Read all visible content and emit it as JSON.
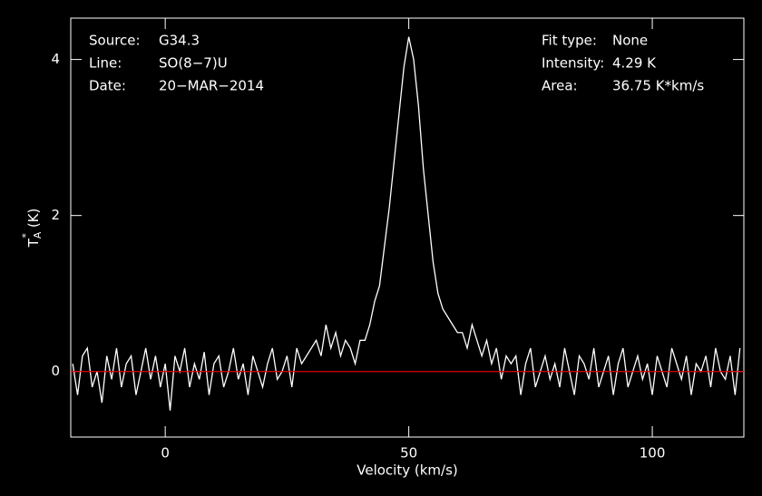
{
  "chart_data": {
    "type": "line",
    "xlabel": "Velocity (km/s)",
    "ylabel": {
      "main": "T",
      "sup": "*",
      "sub": "A",
      "unit": "(K)"
    },
    "annotations": {
      "left": [
        {
          "label": "Source:",
          "value": "G34.3"
        },
        {
          "label": "Line:",
          "value": "SO(8−7)U"
        },
        {
          "label": "Date:",
          "value": "20−MAR−2014"
        }
      ],
      "right": [
        {
          "label": "Fit type:",
          "value": "None"
        },
        {
          "label": "Intensity:",
          "value": "4.29 K"
        },
        {
          "label": "Area:",
          "value": "36.75 K*km/s"
        }
      ]
    },
    "xlim": [
      -19.4,
      118.8
    ],
    "ylim": [
      -0.84,
      4.53
    ],
    "xticks": [
      0,
      50,
      100
    ],
    "yticks": [
      0,
      2,
      4
    ],
    "baseline": {
      "value": 0,
      "color": "#e00000"
    },
    "x": [
      -19,
      -18,
      -17,
      -16,
      -15,
      -14,
      -13,
      -12,
      -11,
      -10,
      -9,
      -8,
      -7,
      -6,
      -5,
      -4,
      -3,
      -2,
      -1,
      0,
      1,
      2,
      3,
      4,
      5,
      6,
      7,
      8,
      9,
      10,
      11,
      12,
      13,
      14,
      15,
      16,
      17,
      18,
      19,
      20,
      21,
      22,
      23,
      24,
      25,
      26,
      27,
      28,
      29,
      30,
      31,
      32,
      33,
      34,
      35,
      36,
      37,
      38,
      39,
      40,
      41,
      42,
      43,
      44,
      45,
      46,
      47,
      48,
      49,
      50,
      51,
      52,
      53,
      54,
      55,
      56,
      57,
      58,
      59,
      60,
      61,
      62,
      63,
      64,
      65,
      66,
      67,
      68,
      69,
      70,
      71,
      72,
      73,
      74,
      75,
      76,
      77,
      78,
      79,
      80,
      81,
      82,
      83,
      84,
      85,
      86,
      87,
      88,
      89,
      90,
      91,
      92,
      93,
      94,
      95,
      96,
      97,
      98,
      99,
      100,
      101,
      102,
      103,
      104,
      105,
      106,
      107,
      108,
      109,
      110,
      111,
      112,
      113,
      114,
      115,
      116,
      117,
      118
    ],
    "series": [
      {
        "color": "#ffffff",
        "values": [
          0.1,
          -0.3,
          0.2,
          0.3,
          -0.2,
          0.0,
          -0.4,
          0.2,
          -0.1,
          0.3,
          -0.2,
          0.1,
          0.2,
          -0.3,
          0.0,
          0.3,
          -0.1,
          0.2,
          -0.2,
          0.1,
          -0.5,
          0.2,
          0.0,
          0.3,
          -0.2,
          0.1,
          -0.1,
          0.25,
          -0.3,
          0.1,
          0.2,
          -0.2,
          0.0,
          0.3,
          -0.1,
          0.1,
          -0.3,
          0.2,
          0.0,
          -0.2,
          0.1,
          0.3,
          -0.1,
          0.0,
          0.2,
          -0.2,
          0.3,
          0.1,
          0.2,
          0.3,
          0.4,
          0.2,
          0.6,
          0.3,
          0.5,
          0.2,
          0.4,
          0.3,
          0.1,
          0.4,
          0.4,
          0.6,
          0.9,
          1.1,
          1.6,
          2.1,
          2.7,
          3.3,
          3.9,
          4.29,
          4.0,
          3.4,
          2.6,
          2.0,
          1.4,
          1.0,
          0.8,
          0.7,
          0.6,
          0.5,
          0.5,
          0.3,
          0.6,
          0.4,
          0.2,
          0.4,
          0.1,
          0.3,
          -0.1,
          0.2,
          0.1,
          0.2,
          -0.3,
          0.1,
          0.3,
          -0.2,
          0.0,
          0.2,
          -0.1,
          0.1,
          -0.2,
          0.3,
          0.0,
          -0.3,
          0.2,
          0.1,
          -0.1,
          0.3,
          -0.2,
          0.0,
          0.2,
          -0.3,
          0.1,
          0.3,
          -0.2,
          0.0,
          0.2,
          -0.1,
          0.1,
          -0.3,
          0.2,
          0.0,
          -0.2,
          0.3,
          0.1,
          -0.1,
          0.2,
          -0.3,
          0.1,
          0.0,
          0.2,
          -0.2,
          0.3,
          0.0,
          -0.1,
          0.2,
          -0.3,
          0.3
        ]
      }
    ]
  }
}
